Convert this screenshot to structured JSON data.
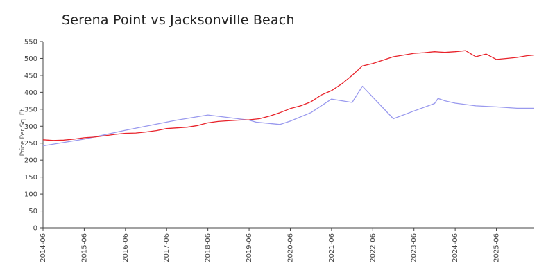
{
  "chart_data": {
    "type": "line",
    "title": "Serena Point vs Jacksonville Beach",
    "xlabel": "",
    "ylabel": "Price Per Sq. Ft.",
    "ylim": [
      0,
      550
    ],
    "yticks": [
      0,
      50,
      100,
      150,
      200,
      250,
      300,
      350,
      400,
      450,
      500,
      550
    ],
    "xlim": [
      "2014-06",
      "2026-05"
    ],
    "xticks": [
      "2014-06",
      "2015-06",
      "2016-06",
      "2017-06",
      "2018-06",
      "2019-06",
      "2020-06",
      "2021-06",
      "2022-06",
      "2023-06",
      "2024-06",
      "2025-06"
    ],
    "grid": false,
    "legend": "none",
    "series": [
      {
        "color": "#e8222a",
        "points": [
          [
            "2014-06",
            260
          ],
          [
            "2014-09",
            258
          ],
          [
            "2014-12",
            259
          ],
          [
            "2015-03",
            262
          ],
          [
            "2015-06",
            266
          ],
          [
            "2015-09",
            268
          ],
          [
            "2015-12",
            272
          ],
          [
            "2016-03",
            276
          ],
          [
            "2016-06",
            279
          ],
          [
            "2016-09",
            280
          ],
          [
            "2016-12",
            283
          ],
          [
            "2017-03",
            287
          ],
          [
            "2017-06",
            293
          ],
          [
            "2017-09",
            295
          ],
          [
            "2017-12",
            297
          ],
          [
            "2018-03",
            302
          ],
          [
            "2018-06",
            310
          ],
          [
            "2018-09",
            314
          ],
          [
            "2018-12",
            316
          ],
          [
            "2019-03",
            318
          ],
          [
            "2019-06",
            319
          ],
          [
            "2019-09",
            322
          ],
          [
            "2019-12",
            330
          ],
          [
            "2020-03",
            340
          ],
          [
            "2020-06",
            352
          ],
          [
            "2020-09",
            360
          ],
          [
            "2020-12",
            372
          ],
          [
            "2021-03",
            392
          ],
          [
            "2021-06",
            405
          ],
          [
            "2021-09",
            425
          ],
          [
            "2021-12",
            450
          ],
          [
            "2022-03",
            478
          ],
          [
            "2022-06",
            485
          ],
          [
            "2022-09",
            495
          ],
          [
            "2022-12",
            505
          ],
          [
            "2023-03",
            510
          ],
          [
            "2023-06",
            515
          ],
          [
            "2023-09",
            517
          ],
          [
            "2023-12",
            520
          ],
          [
            "2024-03",
            518
          ],
          [
            "2024-06",
            520
          ],
          [
            "2024-09",
            523
          ],
          [
            "2024-12",
            505
          ],
          [
            "2025-03",
            513
          ],
          [
            "2025-06",
            497
          ],
          [
            "2025-09",
            500
          ],
          [
            "2025-12",
            503
          ],
          [
            "2026-03",
            508
          ],
          [
            "2026-05",
            510
          ]
        ]
      },
      {
        "color": "#9999ee",
        "points": [
          [
            "2014-06",
            242
          ],
          [
            "2015-06",
            262
          ],
          [
            "2016-06",
            288
          ],
          [
            "2017-06",
            312
          ],
          [
            "2017-09",
            318
          ],
          [
            "2018-06",
            333
          ],
          [
            "2019-06",
            318
          ],
          [
            "2019-08",
            312
          ],
          [
            "2020-03",
            305
          ],
          [
            "2020-06",
            315
          ],
          [
            "2020-12",
            340
          ],
          [
            "2021-06",
            380
          ],
          [
            "2021-12",
            370
          ],
          [
            "2022-03",
            418
          ],
          [
            "2022-12",
            322
          ],
          [
            "2023-06",
            345
          ],
          [
            "2023-12",
            367
          ],
          [
            "2024-01",
            382
          ],
          [
            "2024-03",
            375
          ],
          [
            "2024-06",
            368
          ],
          [
            "2024-12",
            360
          ],
          [
            "2025-06",
            357
          ],
          [
            "2025-12",
            353
          ],
          [
            "2026-05",
            353
          ]
        ]
      }
    ]
  }
}
